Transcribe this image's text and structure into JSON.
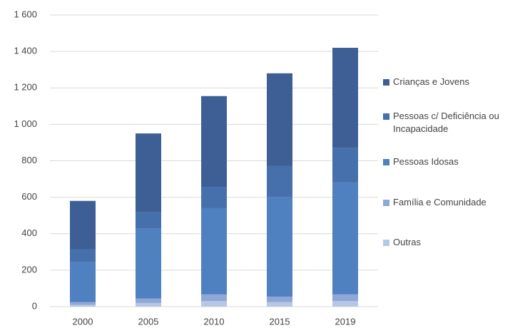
{
  "chart_data": {
    "type": "stacked_bar",
    "categories": [
      "2000",
      "2005",
      "2010",
      "2015",
      "2019"
    ],
    "series": [
      {
        "name": "Crianças e Jovens",
        "color": "#3d5f96",
        "values": [
          265,
          430,
          498,
          509,
          548
        ]
      },
      {
        "name": "Pessoas c/ Deficiência ou Incapacidade",
        "color": "#4570ab",
        "values": [
          70,
          90,
          117,
          169,
          191
        ]
      },
      {
        "name": "Pessoas Idosas",
        "color": "#4f80c0",
        "values": [
          220,
          385,
          473,
          547,
          614
        ]
      },
      {
        "name": "Família e Comunidade",
        "color": "#8fa7d6",
        "values": [
          15,
          25,
          37,
          30,
          37
        ]
      },
      {
        "name": "Outras",
        "color": "#b8c6e6",
        "values": [
          10,
          20,
          30,
          25,
          30
        ]
      }
    ],
    "ylim": [
      0,
      1600
    ],
    "yticks": [
      0,
      200,
      400,
      600,
      800,
      {
        "value": 1000,
        "label": "1 000"
      },
      {
        "value": 1200,
        "label": "1 200"
      },
      {
        "value": 1400,
        "label": "1 400"
      },
      {
        "value": 1600,
        "label": "1 600"
      }
    ],
    "grid": true
  }
}
